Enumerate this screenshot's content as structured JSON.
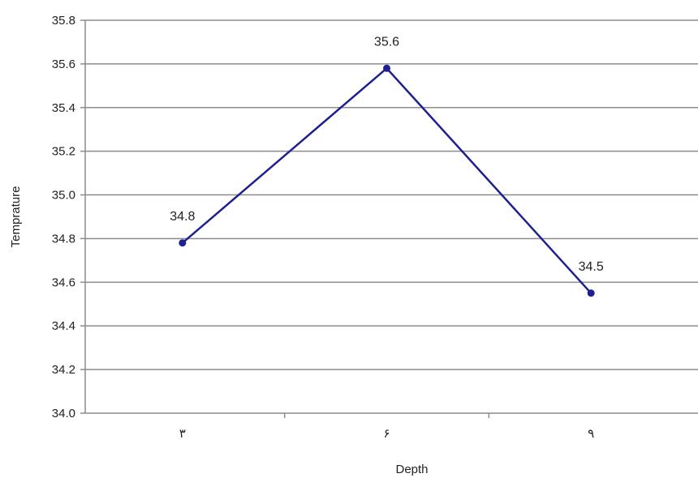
{
  "chart_data": {
    "type": "line",
    "title": "",
    "xlabel": "Depth",
    "ylabel": "Temprature",
    "categories": [
      "۳",
      "۶",
      "۹"
    ],
    "series": [
      {
        "values": [
          34.78,
          35.58,
          34.55
        ],
        "data_labels": [
          "34.8",
          "35.6",
          "34.5"
        ],
        "color": "#1f1f8f"
      }
    ],
    "ylim": [
      34.0,
      35.8
    ],
    "yticks": [
      "34.0",
      "34.2",
      "34.4",
      "34.6",
      "34.8",
      "35.0",
      "35.2",
      "35.4",
      "35.6",
      "35.8"
    ],
    "grid": true,
    "legend": "none"
  },
  "colors": {
    "series_line": "#1f1f8f",
    "gridline": "#8c8c8c",
    "axis": "#8c8c8c",
    "background": "#ffffff"
  }
}
